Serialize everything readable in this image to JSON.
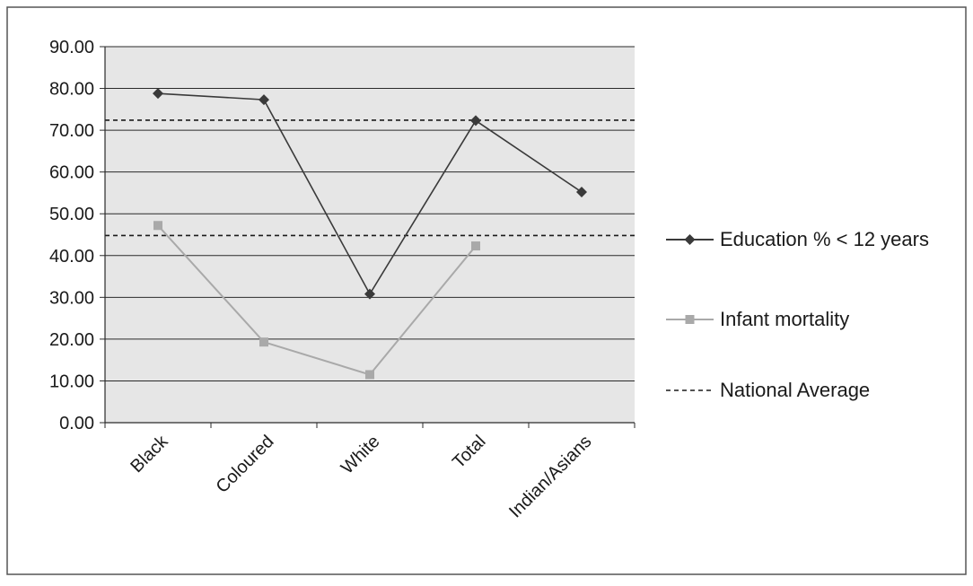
{
  "chart_data": {
    "type": "line",
    "title": "",
    "xlabel": "",
    "ylabel": "",
    "categories": [
      "Black",
      "Coloured",
      "White",
      "Total",
      "Indian/Asians"
    ],
    "ylim": [
      0,
      90
    ],
    "y_ticks": [
      "0.00",
      "10.00",
      "20.00",
      "30.00",
      "40.00",
      "50.00",
      "60.00",
      "70.00",
      "80.00",
      "90.00"
    ],
    "grid": true,
    "legend_position": "right",
    "series": [
      {
        "name": "Education % < 12 years",
        "values": [
          78.8,
          77.3,
          30.8,
          72.3,
          55.2
        ],
        "color": "#3a3a3a",
        "marker": "diamond"
      },
      {
        "name": "Infant mortality",
        "values": [
          47.2,
          19.3,
          11.5,
          42.3,
          null
        ],
        "color": "#a9a9a9",
        "marker": "square"
      }
    ],
    "reference_lines": [
      {
        "name": "National Average",
        "values": [
          72.4,
          44.8
        ],
        "style": "dashed",
        "color": "#1a1a1a"
      }
    ]
  }
}
